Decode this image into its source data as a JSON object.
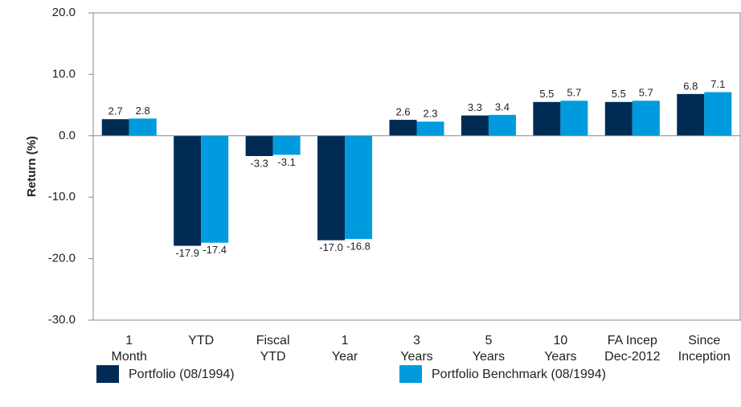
{
  "chart_data": {
    "type": "bar",
    "y_label": "Return (%)",
    "categories": [
      "1\nMonth",
      "YTD",
      "Fiscal\nYTD",
      "1\nYear",
      "3\nYears",
      "5\nYears",
      "10\nYears",
      "FA Incep\nDec-2012",
      "Since\nInception"
    ],
    "series": [
      {
        "name": "Portfolio (08/1994)",
        "color": "#002b55",
        "values": [
          2.7,
          -17.9,
          -3.3,
          -17.0,
          2.6,
          3.3,
          5.5,
          5.5,
          6.8
        ],
        "value_labels": [
          "2.7",
          "-17.9",
          "-3.3",
          "-17.0",
          "2.6",
          "3.3",
          "5.5",
          "5.5",
          "6.8"
        ]
      },
      {
        "name": "Portfolio Benchmark (08/1994)",
        "color": "#009bde",
        "values": [
          2.8,
          -17.4,
          -3.1,
          -16.8,
          2.3,
          3.4,
          5.7,
          5.7,
          7.1
        ],
        "value_labels": [
          "2.8",
          "-17.4",
          "-3.1",
          "-16.8",
          "2.3",
          "3.4",
          "5.7",
          "5.7",
          "7.1"
        ]
      }
    ],
    "ylim": [
      -30,
      20
    ],
    "yticks": [
      {
        "value": -30,
        "label": "-30.0"
      },
      {
        "value": -20,
        "label": "-20.0"
      },
      {
        "value": -10,
        "label": "-10.0"
      },
      {
        "value": 0,
        "label": "0.0"
      },
      {
        "value": 10,
        "label": "10.0"
      },
      {
        "value": 20,
        "label": "20.0"
      }
    ],
    "grid": false,
    "legend": "bottom"
  }
}
